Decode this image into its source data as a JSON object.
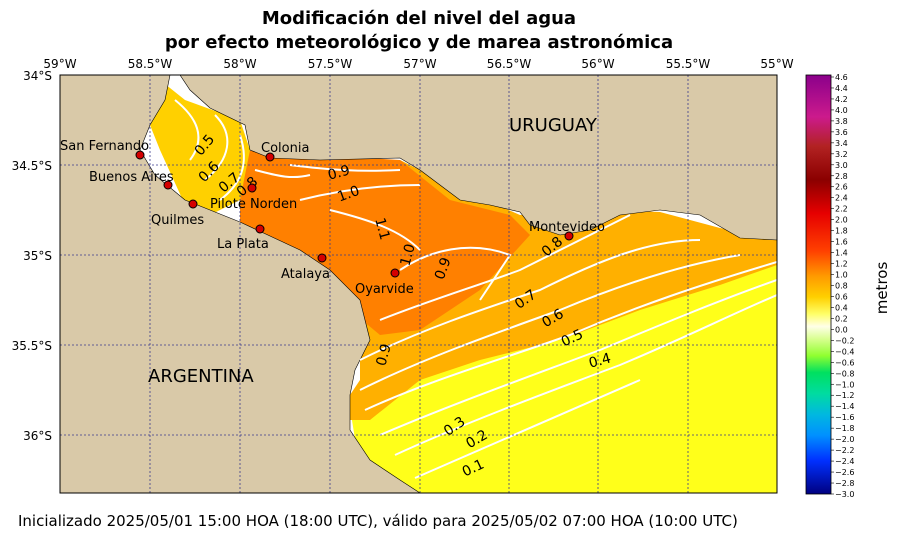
{
  "title_line1": "Modificación del nivel del agua",
  "title_line2": "por efecto meteorológico y de marea astronómica",
  "footer": "Inicializado 2025/05/01 15:00 HOA (18:00 UTC), válido para 2025/05/02 07:00 HOA (10:00 UTC)",
  "colorbar_label": "metros",
  "lon_ticks": [
    "59°W",
    "58.5°W",
    "58°W",
    "57.5°W",
    "57°W",
    "56.5°W",
    "56°W",
    "55.5°W",
    "55°W"
  ],
  "lat_ticks": [
    "34°S",
    "34.5°S",
    "35°S",
    "35.5°S",
    "36°S"
  ],
  "colorbar_ticks": [
    "4.6",
    "4.4",
    "4.2",
    "4.0",
    "3.8",
    "3.6",
    "3.4",
    "3.2",
    "3.0",
    "2.8",
    "2.6",
    "2.4",
    "2.2",
    "2.0",
    "1.8",
    "1.6",
    "1.4",
    "1.2",
    "1.0",
    "0.8",
    "0.6",
    "0.4",
    "0.2",
    "0.0",
    "−0.2",
    "−0.4",
    "−0.6",
    "−0.8",
    "−1.0",
    "−1.2",
    "−1.4",
    "−1.6",
    "−1.8",
    "−2.0",
    "−2.2",
    "−2.4",
    "−2.6",
    "−2.8",
    "−3.0"
  ],
  "countries": {
    "uruguay": "URUGUAY",
    "argentina": "ARGENTINA"
  },
  "cities": [
    {
      "name": "San Fernando"
    },
    {
      "name": "Buenos Aires"
    },
    {
      "name": "Quilmes"
    },
    {
      "name": "Pilote Norden"
    },
    {
      "name": "Colonia"
    },
    {
      "name": "La Plata"
    },
    {
      "name": "Atalaya"
    },
    {
      "name": "Oyarvide"
    },
    {
      "name": "Montevideo"
    }
  ],
  "contour_labels": [
    "0.5",
    "0.6",
    "0.7",
    "0.8",
    "0.9",
    "1.0",
    "1.1",
    "1.0",
    "0.9",
    "0.8",
    "0.7",
    "0.6",
    "0.5",
    "0.4",
    "0.9",
    "0.3",
    "0.2",
    "0.1"
  ],
  "colors": {
    "land": "#d9c9a8",
    "grid": "#3a3a8c"
  }
}
